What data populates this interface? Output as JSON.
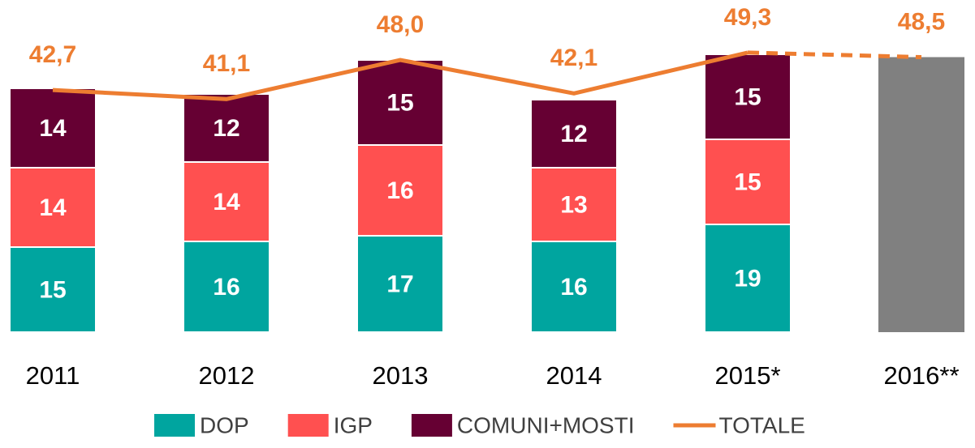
{
  "chart_data": {
    "type": "stacked-bar-line",
    "categories": [
      "2011",
      "2012",
      "2013",
      "2014",
      "2015*",
      "2016**"
    ],
    "series": [
      {
        "name": "DOP",
        "color": "#00a59f",
        "values": [
          15,
          16,
          17,
          16,
          19,
          null
        ]
      },
      {
        "name": "IGP",
        "color": "#ff5050",
        "values": [
          14,
          14,
          16,
          13,
          15,
          null
        ]
      },
      {
        "name": "COMUNI+MOSTI",
        "color": "#660033",
        "values": [
          14,
          12,
          15,
          12,
          15,
          null
        ]
      },
      {
        "name": "TOTALE",
        "color": "#ed7d31",
        "type": "line",
        "values": [
          42.7,
          41.1,
          48.0,
          42.1,
          49.3,
          48.5
        ],
        "value_labels": [
          "42,7",
          "41,1",
          "48,0",
          "42,1",
          "49,3",
          "48,5"
        ]
      }
    ],
    "estimate_color": "#808080"
  }
}
